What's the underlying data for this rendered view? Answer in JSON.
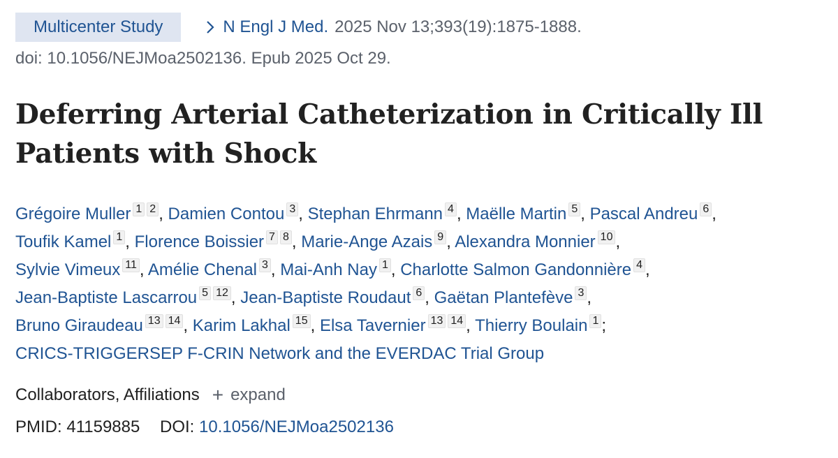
{
  "badge": "Multicenter Study",
  "journal": "N Engl J Med.",
  "citation": "2025 Nov 13;393(19):1875-1888.",
  "doi_line": "doi: 10.1056/NEJMoa2502136. Epub 2025 Oct 29.",
  "title": "Deferring Arterial Catheterization in Critically Ill Patients with Shock",
  "authors": {
    "a1": {
      "name": "Grégoire Muller",
      "sup1": "1",
      "sup2": "2"
    },
    "a2": {
      "name": "Damien Contou",
      "sup1": "3"
    },
    "a3": {
      "name": "Stephan Ehrmann",
      "sup1": "4"
    },
    "a4": {
      "name": "Maëlle Martin",
      "sup1": "5"
    },
    "a5": {
      "name": "Pascal Andreu",
      "sup1": "6"
    },
    "a6": {
      "name": "Toufik Kamel",
      "sup1": "1"
    },
    "a7": {
      "name": "Florence Boissier",
      "sup1": "7",
      "sup2": "8"
    },
    "a8": {
      "name": "Marie-Ange Azais",
      "sup1": "9"
    },
    "a9": {
      "name": "Alexandra Monnier",
      "sup1": "10"
    },
    "a10": {
      "name": "Sylvie Vimeux",
      "sup1": "11"
    },
    "a11": {
      "name": "Amélie Chenal",
      "sup1": "3"
    },
    "a12": {
      "name": "Mai-Anh Nay",
      "sup1": "1"
    },
    "a13": {
      "name": "Charlotte Salmon Gandonnière",
      "sup1": "4"
    },
    "a14": {
      "name": "Jean-Baptiste Lascarrou",
      "sup1": "5",
      "sup2": "12"
    },
    "a15": {
      "name": "Jean-Baptiste Roudaut",
      "sup1": "6"
    },
    "a16": {
      "name": "Gaëtan Plantefève",
      "sup1": "3"
    },
    "a17": {
      "name": "Bruno Giraudeau",
      "sup1": "13",
      "sup2": "14"
    },
    "a18": {
      "name": "Karim Lakhal",
      "sup1": "15"
    },
    "a19": {
      "name": "Elsa Tavernier",
      "sup1": "13",
      "sup2": "14"
    },
    "a20": {
      "name": "Thierry Boulain",
      "sup1": "1"
    },
    "group": "CRICS-TRIGGERSEP F-CRIN Network and the EVERDAC Trial Group"
  },
  "separators": {
    "comma": ",",
    "semicolon": ";"
  },
  "affiliations": {
    "label": "Collaborators, Affiliations",
    "plus": "+",
    "expand": "expand"
  },
  "ids": {
    "pmid_label": "PMID:",
    "pmid": "41159885",
    "doi_label": "DOI:",
    "doi": "10.1056/NEJMoa2502136"
  },
  "icons": {
    "chevron": "chevron-right-icon",
    "plus": "plus-icon"
  },
  "colors": {
    "link": "#205493",
    "badge_bg": "#dfe5f1",
    "muted": "#5b616b",
    "text": "#212121"
  }
}
